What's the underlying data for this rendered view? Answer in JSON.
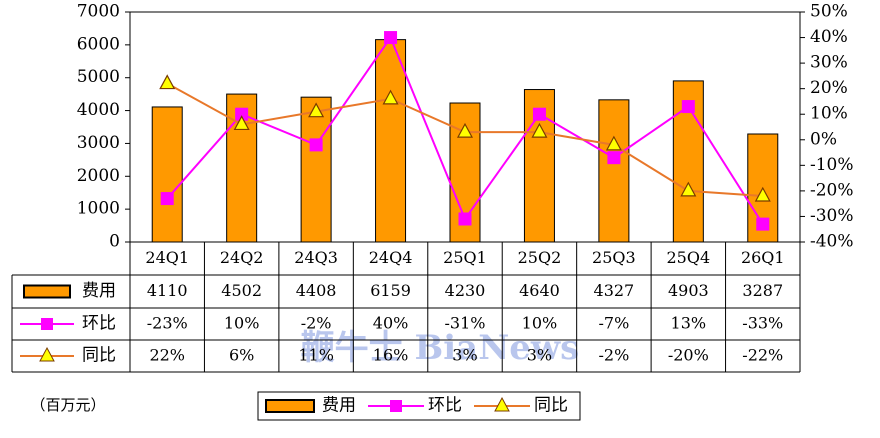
{
  "chart_data": {
    "type": "bar_line_table",
    "categories": [
      "24Q1",
      "24Q2",
      "24Q3",
      "24Q4",
      "25Q1",
      "25Q2",
      "25Q3",
      "25Q4",
      "26Q1"
    ],
    "unit_note": "（百万元）",
    "watermark": "鞭牛士 BiaNews",
    "series": [
      {
        "name": "费用",
        "type": "bar",
        "color": "#FF9900",
        "values": [
          4110,
          4502,
          4408,
          6159,
          4230,
          4640,
          4327,
          4903,
          3287
        ]
      },
      {
        "name": "环比",
        "type": "line",
        "axis": "y2",
        "color": "#FF00FF",
        "marker": "square",
        "values": [
          -23,
          10,
          -2,
          40,
          -31,
          10,
          -7,
          13,
          -33
        ],
        "value_labels": [
          "-23%",
          "10%",
          "-2%",
          "40%",
          "-31%",
          "10%",
          "-7%",
          "13%",
          "-33%"
        ]
      },
      {
        "name": "同比",
        "type": "line",
        "axis": "y2",
        "color": "#E8782A",
        "marker": "triangle",
        "values": [
          22,
          6,
          11,
          16,
          3,
          3,
          -2,
          -20,
          -22
        ],
        "value_labels": [
          "22%",
          "6%",
          "11%",
          "16%",
          "3%",
          "3%",
          "-2%",
          "-20%",
          "-22%"
        ]
      }
    ],
    "ylim": [
      0,
      7000
    ],
    "yticks": [
      0,
      1000,
      2000,
      3000,
      4000,
      5000,
      6000,
      7000
    ],
    "y2lim": [
      -40,
      50
    ],
    "y2ticks": [
      {
        "value": -40,
        "label": "-40%"
      },
      {
        "value": -30,
        "label": "-30%"
      },
      {
        "value": -20,
        "label": "-20%"
      },
      {
        "value": -10,
        "label": "-10%"
      },
      {
        "value": 0,
        "label": "0%"
      },
      {
        "value": 10,
        "label": "10%"
      },
      {
        "value": 20,
        "label": "20%"
      },
      {
        "value": 30,
        "label": "30%"
      },
      {
        "value": 40,
        "label": "40%"
      },
      {
        "value": 50,
        "label": "50%"
      }
    ]
  }
}
